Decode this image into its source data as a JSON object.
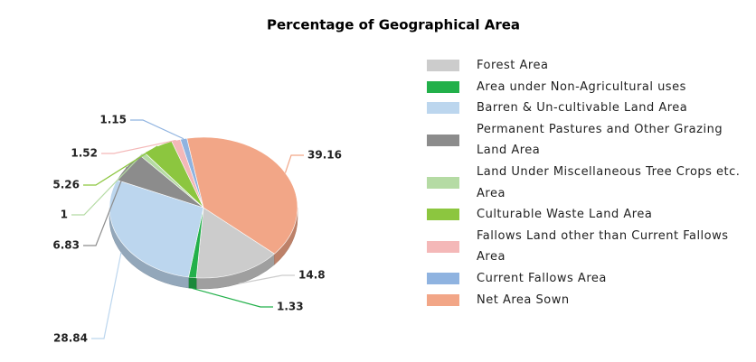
{
  "chart_data": {
    "type": "pie",
    "title": "Percentage of Geographical Area",
    "categories": [
      "Forest Area",
      "Area under Non-Agricultural uses",
      "Barren & Un-cultivable Land Area",
      "Permanent Pastures and Other Grazing Land Area",
      "Land Under Miscellaneous Tree Crops etc. Area",
      "Culturable Waste Land Area",
      "Fallows Land other than Current Fallows Area",
      "Current Fallows Area",
      "Net Area Sown"
    ],
    "values": [
      14.8,
      1.33,
      28.84,
      6.83,
      1,
      5.26,
      1.52,
      1.15,
      39.16
    ],
    "colors": [
      "#cccccc",
      "#22b04a",
      "#bcd6ee",
      "#8c8c8c",
      "#b5dba4",
      "#8cc63f",
      "#f4b8b8",
      "#8fb3e0",
      "#f2a687"
    ],
    "legend": "right"
  }
}
